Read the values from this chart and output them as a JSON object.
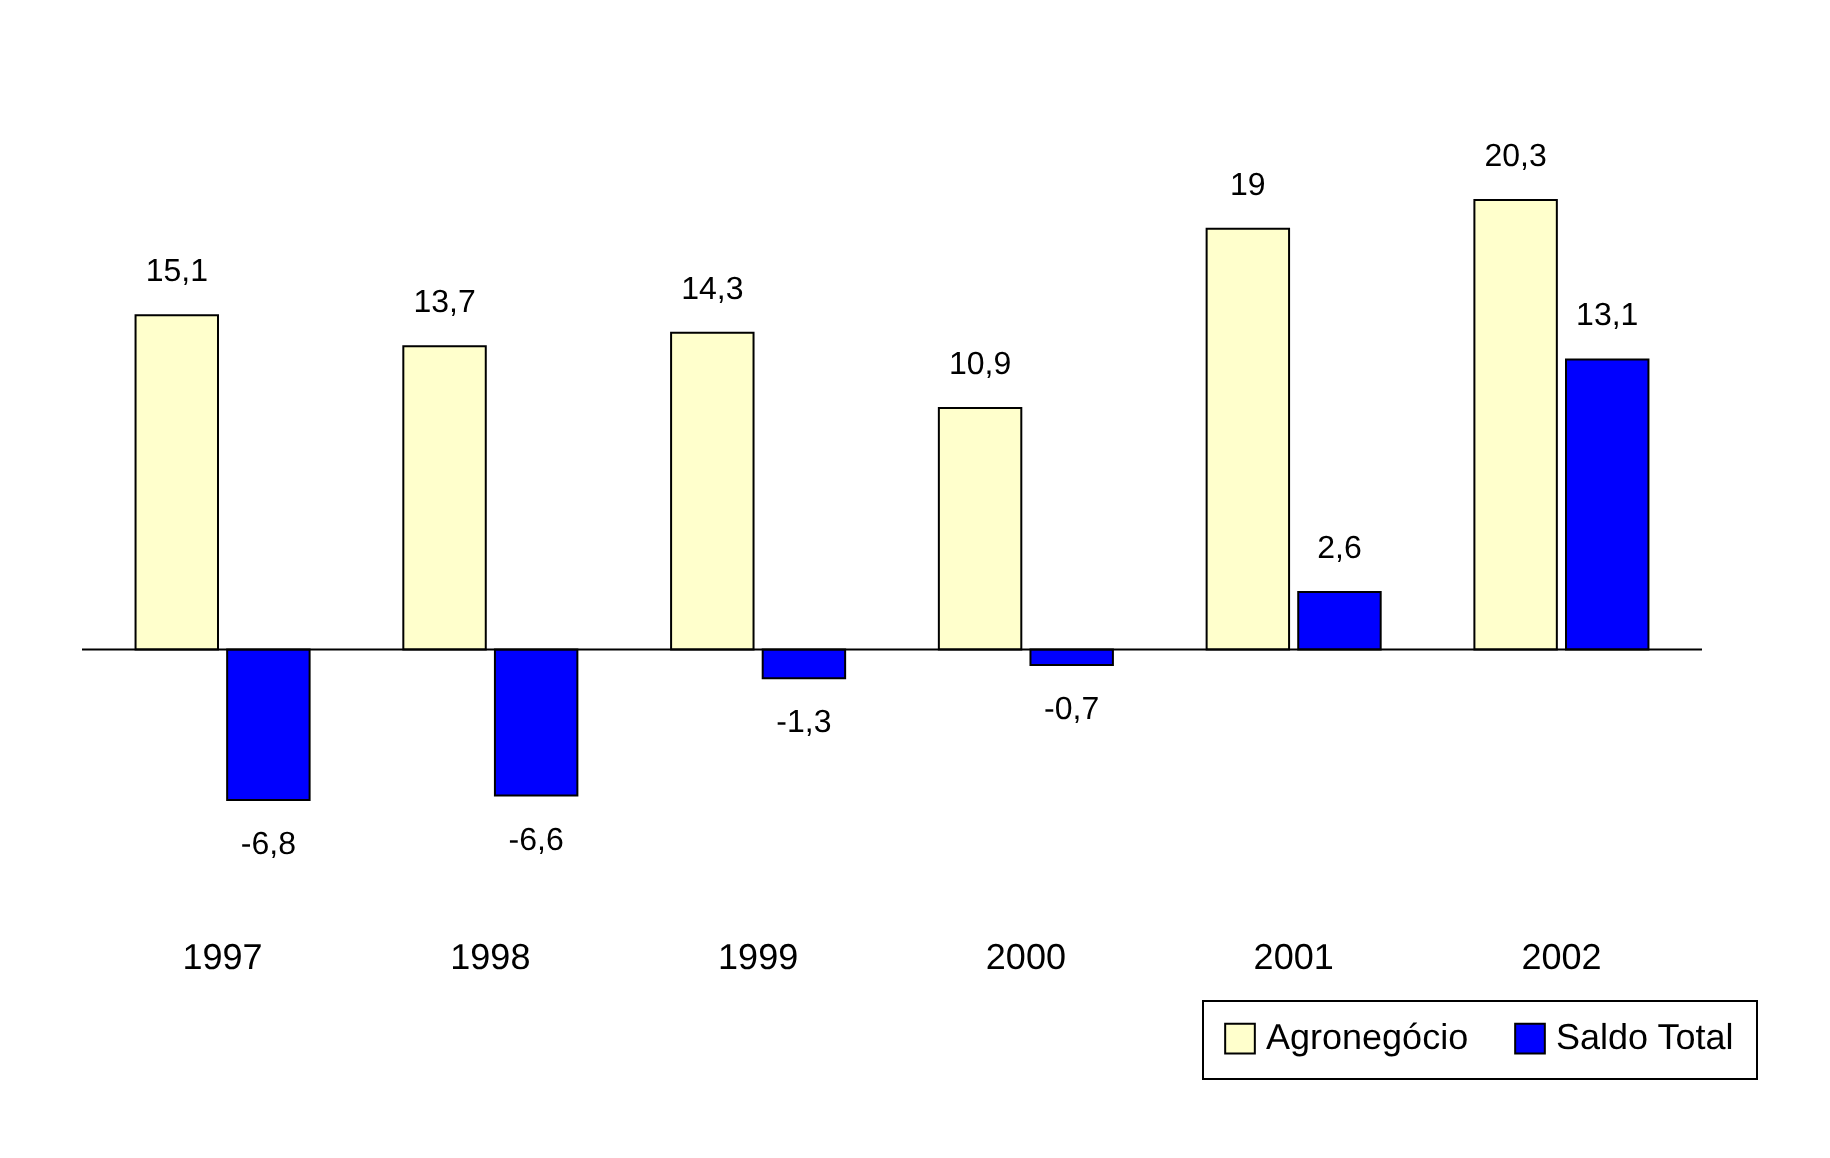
{
  "chart_data": {
    "type": "bar",
    "categories": [
      "1997",
      "1998",
      "1999",
      "2000",
      "2001",
      "2002"
    ],
    "series": [
      {
        "name": "Agronegócio",
        "color": "#ffffcc",
        "values": [
          15.1,
          13.7,
          14.3,
          10.9,
          19,
          20.3
        ],
        "value_labels": [
          "15,1",
          "13,7",
          "14,3",
          "10,9",
          "19",
          "20,3"
        ]
      },
      {
        "name": "Saldo Total",
        "color": "#0000ff",
        "values": [
          -6.8,
          -6.6,
          -1.3,
          -0.7,
          2.6,
          13.1
        ],
        "value_labels": [
          "-6,8",
          "-6,6",
          "-1,3",
          "-0,7",
          "2,6",
          "13,1"
        ]
      }
    ],
    "legend": "bottom right",
    "tick_labels": "x",
    "grid": false
  }
}
